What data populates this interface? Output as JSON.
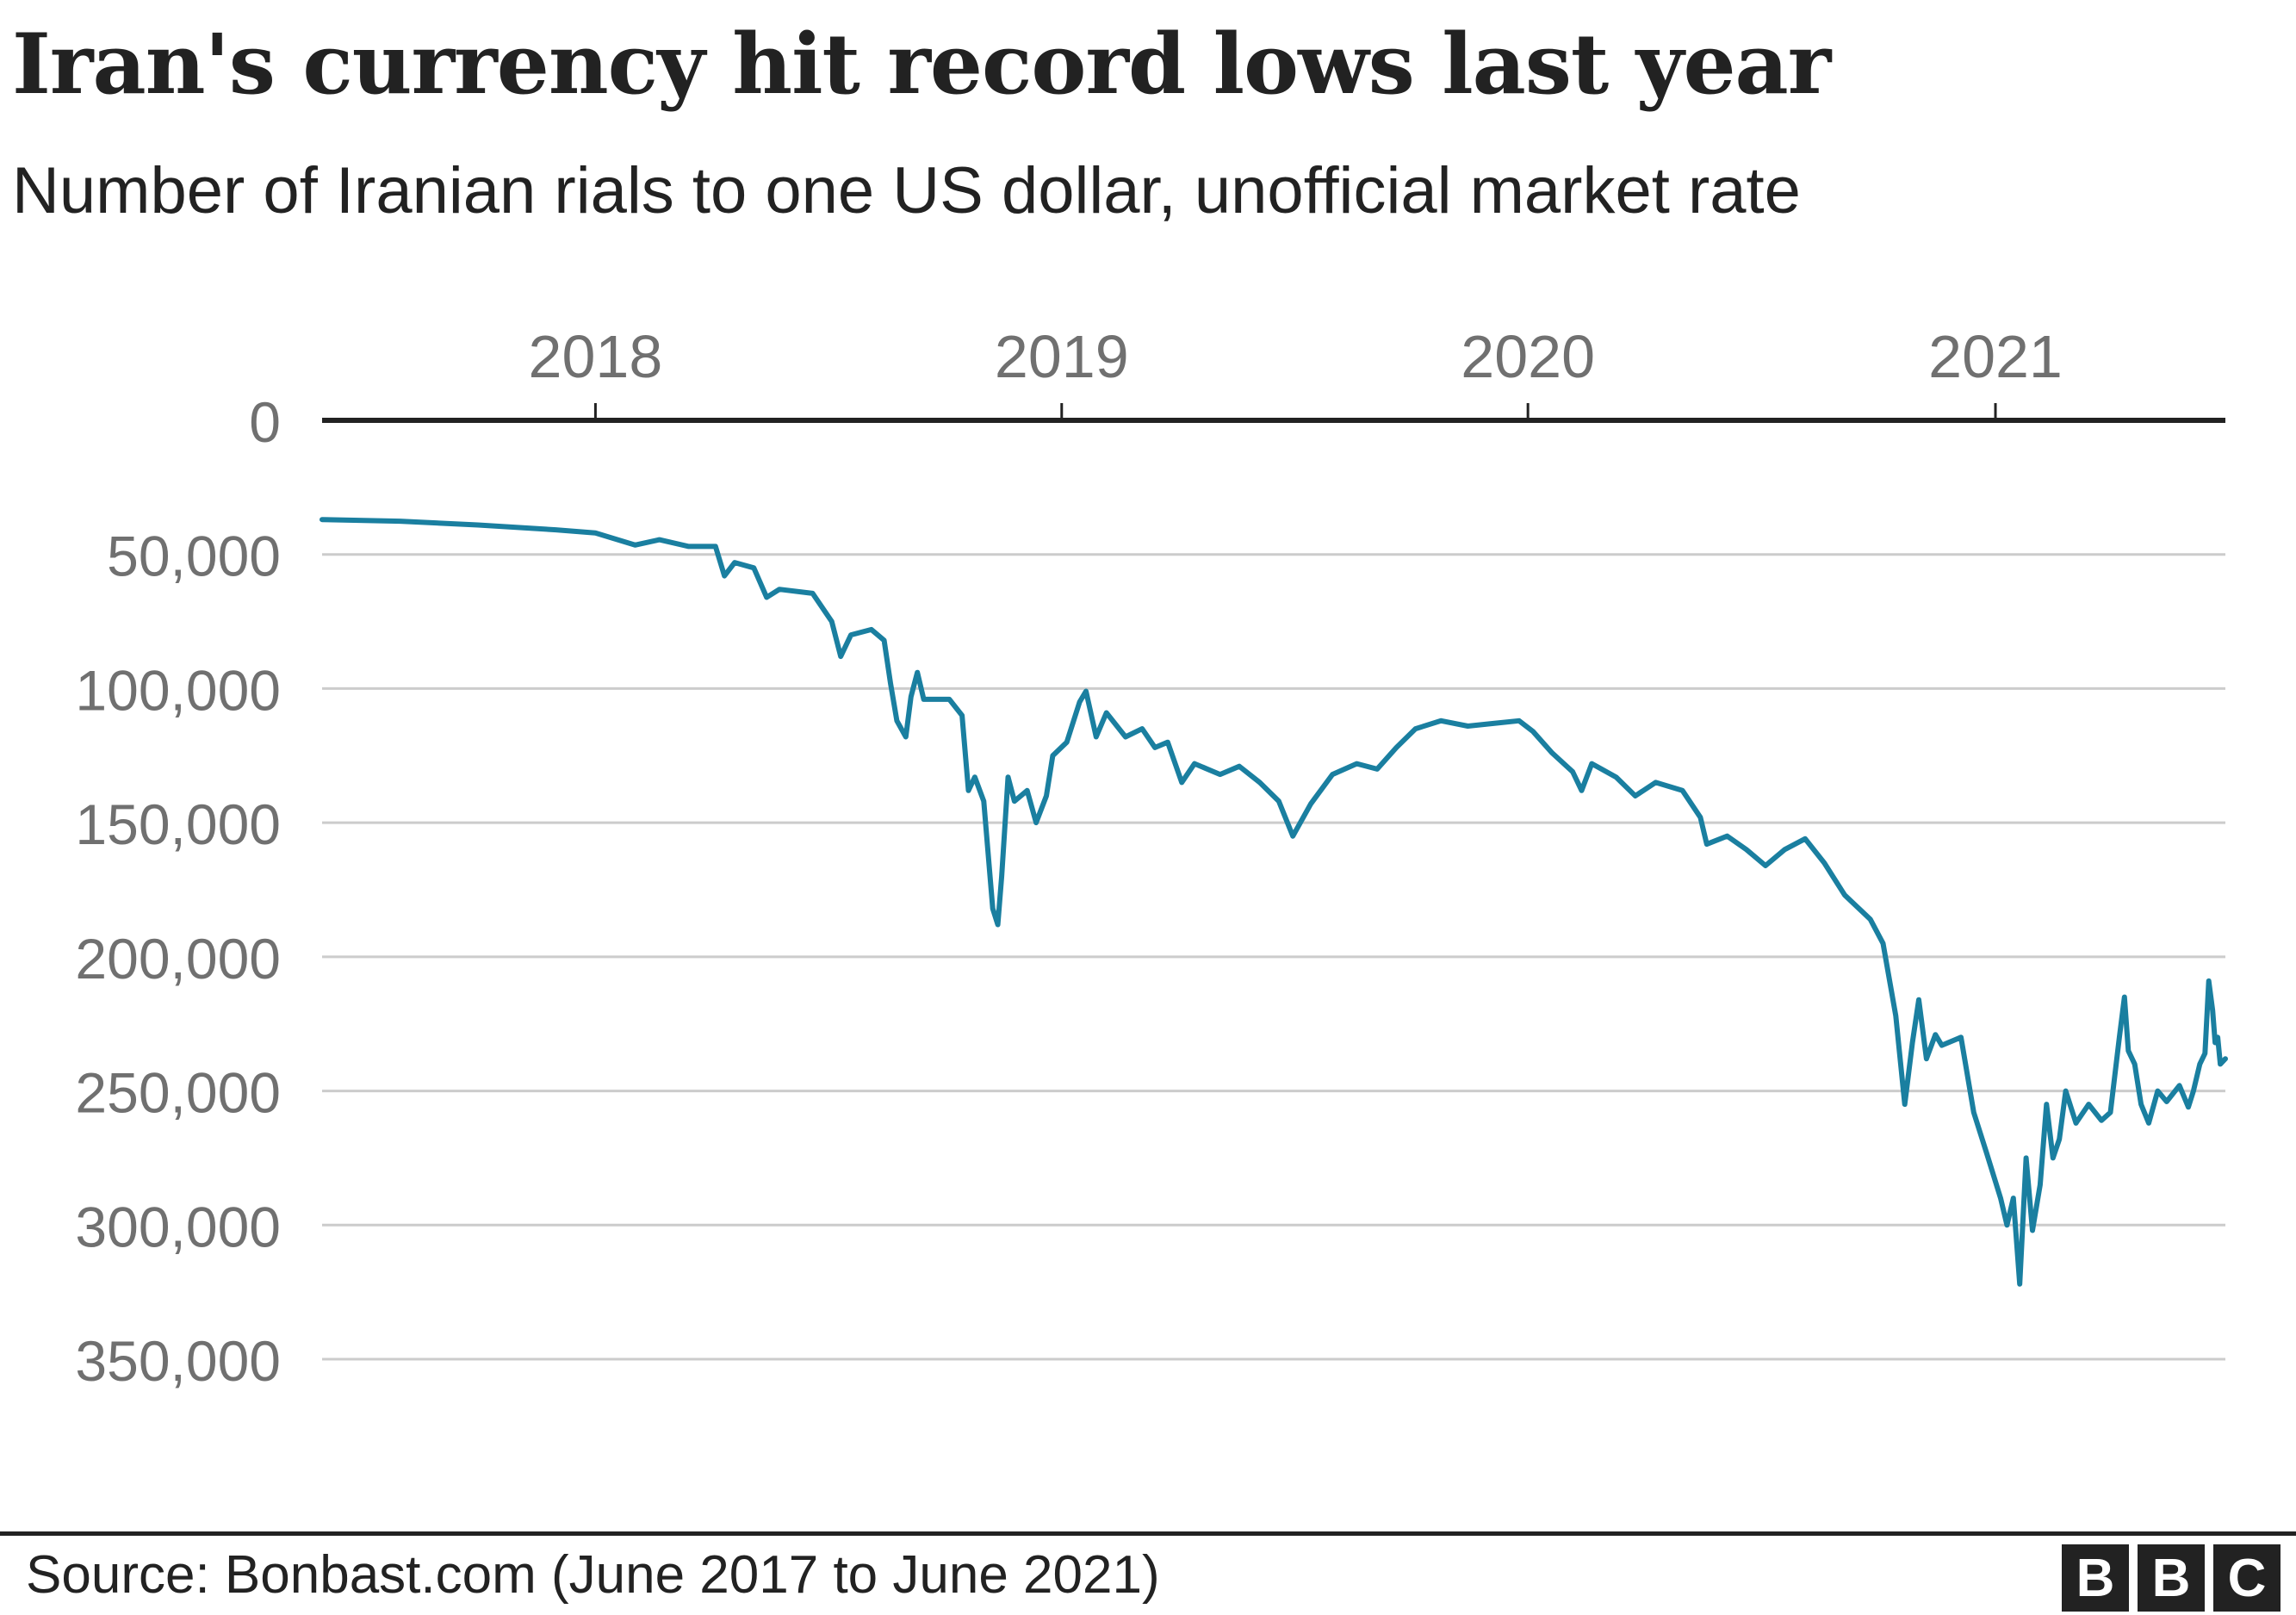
{
  "title": "Iran's currency hit record lows last year",
  "subtitle": "Number of Iranian rials to one US dollar, unofficial market rate",
  "source": "Source: Bonbast.com (June 2017 to June 2021)",
  "logo": [
    "B",
    "B",
    "C"
  ],
  "colors": {
    "line": "#1a7fa0",
    "axis": "#222222",
    "grid": "#cccccc",
    "tick_text": "#707070",
    "text": "#222222"
  },
  "chart_data": {
    "type": "line",
    "title": "Iran's currency hit record lows last year",
    "ylabel": "",
    "xlabel": "",
    "x_axis_position": "top",
    "y_inverted": true,
    "ylim": [
      0,
      350000
    ],
    "xlim": [
      "2017-06-01",
      "2021-06-30"
    ],
    "yticks": [
      0,
      50000,
      100000,
      150000,
      200000,
      250000,
      300000,
      350000
    ],
    "ytick_labels": [
      "0",
      "50,000",
      "100,000",
      "150,000",
      "200,000",
      "250,000",
      "300,000",
      "350,000"
    ],
    "xticks": [
      "2018-01-01",
      "2019-01-01",
      "2020-01-01",
      "2021-01-01"
    ],
    "xtick_labels": [
      "2018",
      "2019",
      "2020",
      "2021"
    ],
    "grid": true,
    "series": [
      {
        "values": [
          [
            "2017-06-01",
            37000
          ],
          [
            "2017-08-01",
            37600
          ],
          [
            "2017-10-01",
            39000
          ],
          [
            "2017-12-01",
            40800
          ],
          [
            "2018-01-01",
            42000
          ],
          [
            "2018-02-01",
            46500
          ],
          [
            "2018-02-20",
            44500
          ],
          [
            "2018-03-15",
            47000
          ],
          [
            "2018-04-05",
            47000
          ],
          [
            "2018-04-12",
            58000
          ],
          [
            "2018-04-20",
            53000
          ],
          [
            "2018-05-05",
            55000
          ],
          [
            "2018-05-15",
            66000
          ],
          [
            "2018-05-25",
            63000
          ],
          [
            "2018-06-20",
            64500
          ],
          [
            "2018-07-05",
            75000
          ],
          [
            "2018-07-12",
            88000
          ],
          [
            "2018-07-20",
            80000
          ],
          [
            "2018-08-05",
            78000
          ],
          [
            "2018-08-15",
            82000
          ],
          [
            "2018-08-20",
            98000
          ],
          [
            "2018-08-25",
            112000
          ],
          [
            "2018-09-01",
            118000
          ],
          [
            "2018-09-05",
            103000
          ],
          [
            "2018-09-10",
            94000
          ],
          [
            "2018-09-15",
            104000
          ],
          [
            "2018-10-05",
            104000
          ],
          [
            "2018-10-15",
            110000
          ],
          [
            "2018-10-20",
            138000
          ],
          [
            "2018-10-25",
            133000
          ],
          [
            "2018-11-01",
            142000
          ],
          [
            "2018-11-08",
            182000
          ],
          [
            "2018-11-12",
            188000
          ],
          [
            "2018-11-15",
            170000
          ],
          [
            "2018-11-20",
            133000
          ],
          [
            "2018-11-25",
            142000
          ],
          [
            "2018-12-05",
            138000
          ],
          [
            "2018-12-12",
            150000
          ],
          [
            "2018-12-20",
            140000
          ],
          [
            "2018-12-25",
            125000
          ],
          [
            "2019-01-05",
            120000
          ],
          [
            "2019-01-15",
            105000
          ],
          [
            "2019-01-20",
            101000
          ],
          [
            "2019-01-28",
            118000
          ],
          [
            "2019-02-05",
            109000
          ],
          [
            "2019-02-20",
            118000
          ],
          [
            "2019-03-05",
            115000
          ],
          [
            "2019-03-15",
            122000
          ],
          [
            "2019-03-25",
            120000
          ],
          [
            "2019-04-05",
            135000
          ],
          [
            "2019-04-15",
            128000
          ],
          [
            "2019-05-05",
            132000
          ],
          [
            "2019-05-20",
            129000
          ],
          [
            "2019-06-05",
            135000
          ],
          [
            "2019-06-20",
            142000
          ],
          [
            "2019-07-01",
            155000
          ],
          [
            "2019-07-15",
            143000
          ],
          [
            "2019-08-01",
            132000
          ],
          [
            "2019-08-20",
            128000
          ],
          [
            "2019-09-05",
            130000
          ],
          [
            "2019-09-20",
            122000
          ],
          [
            "2019-10-05",
            115000
          ],
          [
            "2019-10-25",
            112000
          ],
          [
            "2019-11-15",
            114000
          ],
          [
            "2019-12-05",
            113000
          ],
          [
            "2019-12-25",
            112000
          ],
          [
            "2020-01-05",
            116000
          ],
          [
            "2020-01-20",
            124000
          ],
          [
            "2020-02-05",
            131000
          ],
          [
            "2020-02-12",
            138000
          ],
          [
            "2020-02-20",
            128000
          ],
          [
            "2020-03-10",
            133000
          ],
          [
            "2020-03-25",
            140000
          ],
          [
            "2020-04-10",
            135000
          ],
          [
            "2020-05-01",
            138000
          ],
          [
            "2020-05-15",
            148000
          ],
          [
            "2020-05-20",
            158000
          ],
          [
            "2020-06-05",
            155000
          ],
          [
            "2020-06-20",
            160000
          ],
          [
            "2020-07-05",
            166000
          ],
          [
            "2020-07-20",
            160000
          ],
          [
            "2020-08-05",
            156000
          ],
          [
            "2020-08-20",
            165000
          ],
          [
            "2020-09-05",
            177000
          ],
          [
            "2020-09-25",
            186000
          ],
          [
            "2020-10-05",
            195000
          ],
          [
            "2020-10-15",
            222000
          ],
          [
            "2020-10-22",
            255000
          ],
          [
            "2020-10-28",
            232000
          ],
          [
            "2020-11-02",
            216000
          ],
          [
            "2020-11-08",
            238000
          ],
          [
            "2020-11-15",
            229000
          ],
          [
            "2020-11-20",
            233000
          ],
          [
            "2020-12-05",
            230000
          ],
          [
            "2020-12-15",
            258000
          ],
          [
            "2020-12-25",
            273000
          ],
          [
            "2021-01-05",
            290000
          ],
          [
            "2021-01-10",
            300000
          ],
          [
            "2021-01-15",
            290000
          ],
          [
            "2021-01-20",
            322000
          ],
          [
            "2021-01-25",
            275000
          ],
          [
            "2021-01-30",
            302000
          ],
          [
            "2021-02-05",
            285000
          ],
          [
            "2021-02-10",
            255000
          ],
          [
            "2021-02-15",
            275000
          ],
          [
            "2021-02-20",
            268000
          ],
          [
            "2021-02-25",
            250000
          ],
          [
            "2021-03-05",
            262000
          ],
          [
            "2021-03-15",
            255000
          ],
          [
            "2021-03-25",
            261000
          ],
          [
            "2021-04-01",
            258000
          ],
          [
            "2021-04-08",
            230000
          ],
          [
            "2021-04-12",
            215000
          ],
          [
            "2021-04-15",
            235000
          ],
          [
            "2021-04-20",
            240000
          ],
          [
            "2021-04-25",
            255000
          ],
          [
            "2021-05-01",
            262000
          ],
          [
            "2021-05-08",
            250000
          ],
          [
            "2021-05-15",
            254000
          ],
          [
            "2021-05-25",
            248000
          ],
          [
            "2021-06-01",
            256000
          ],
          [
            "2021-06-05",
            250000
          ],
          [
            "2021-06-10",
            240000
          ],
          [
            "2021-06-14",
            236000
          ],
          [
            "2021-06-17",
            209000
          ],
          [
            "2021-06-20",
            220000
          ],
          [
            "2021-06-22",
            232000
          ],
          [
            "2021-06-24",
            230000
          ],
          [
            "2021-06-26",
            240000
          ],
          [
            "2021-06-30",
            238000
          ]
        ]
      }
    ]
  }
}
